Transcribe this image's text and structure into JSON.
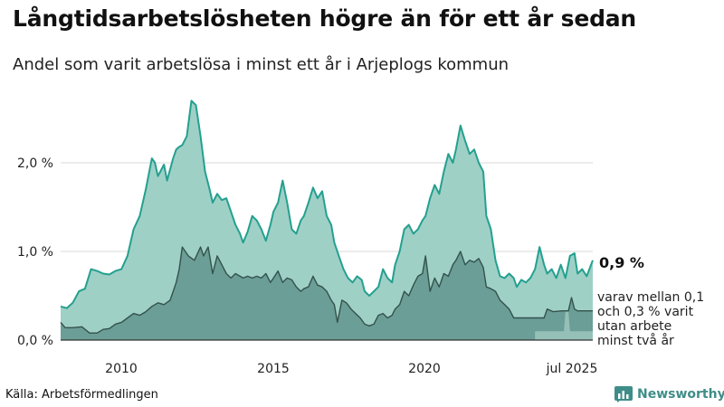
{
  "title": "Långtidsarbetslösheten högre än för ett år sedan",
  "subtitle": "Andel som varit arbetslösa i minst ett år i Arjeplogs kommun",
  "source": "Källa: Arbetsförmedlingen",
  "brand": "Newsworthy",
  "colors": {
    "total_fill": "#9fd0c6",
    "total_line": "#24a08f",
    "two_year_fill": "#6b9e96",
    "two_year_line": "#33524d",
    "band_fill": "#b8dcd5",
    "grid": "#d9d9d9",
    "brand": "#3f8d88"
  },
  "chart_data": {
    "type": "area",
    "x_ticks": [
      "2010",
      "2015",
      "2020",
      "jul 2025"
    ],
    "y_ticks": [
      "0,0 %",
      "1,0 %",
      "2,0 %"
    ],
    "ylim": [
      0,
      2.75
    ],
    "end_label": "0,9 %",
    "annotation": [
      "varav mellan 0,1",
      "och 0,3 % varit",
      "utan arbete",
      "minst två år"
    ],
    "series": [
      {
        "label": "total",
        "points": [
          [
            2008.0,
            0.38
          ],
          [
            2008.2,
            0.36
          ],
          [
            2008.4,
            0.42
          ],
          [
            2008.6,
            0.55
          ],
          [
            2008.8,
            0.58
          ],
          [
            2009.0,
            0.8
          ],
          [
            2009.2,
            0.78
          ],
          [
            2009.4,
            0.75
          ],
          [
            2009.6,
            0.74
          ],
          [
            2009.8,
            0.78
          ],
          [
            2010.0,
            0.8
          ],
          [
            2010.2,
            0.95
          ],
          [
            2010.4,
            1.25
          ],
          [
            2010.6,
            1.4
          ],
          [
            2010.8,
            1.7
          ],
          [
            2011.0,
            2.05
          ],
          [
            2011.1,
            2.0
          ],
          [
            2011.2,
            1.85
          ],
          [
            2011.4,
            1.98
          ],
          [
            2011.5,
            1.8
          ],
          [
            2011.7,
            2.05
          ],
          [
            2011.8,
            2.15
          ],
          [
            2011.9,
            2.18
          ],
          [
            2012.0,
            2.2
          ],
          [
            2012.15,
            2.3
          ],
          [
            2012.3,
            2.7
          ],
          [
            2012.45,
            2.65
          ],
          [
            2012.6,
            2.3
          ],
          [
            2012.75,
            1.9
          ],
          [
            2012.9,
            1.7
          ],
          [
            2013.0,
            1.55
          ],
          [
            2013.15,
            1.65
          ],
          [
            2013.3,
            1.58
          ],
          [
            2013.45,
            1.6
          ],
          [
            2013.6,
            1.45
          ],
          [
            2013.75,
            1.3
          ],
          [
            2013.9,
            1.2
          ],
          [
            2014.0,
            1.1
          ],
          [
            2014.15,
            1.22
          ],
          [
            2014.3,
            1.4
          ],
          [
            2014.45,
            1.35
          ],
          [
            2014.6,
            1.25
          ],
          [
            2014.75,
            1.12
          ],
          [
            2014.9,
            1.3
          ],
          [
            2015.0,
            1.45
          ],
          [
            2015.15,
            1.55
          ],
          [
            2015.3,
            1.8
          ],
          [
            2015.45,
            1.55
          ],
          [
            2015.6,
            1.25
          ],
          [
            2015.75,
            1.2
          ],
          [
            2015.9,
            1.35
          ],
          [
            2016.0,
            1.4
          ],
          [
            2016.15,
            1.55
          ],
          [
            2016.3,
            1.72
          ],
          [
            2016.45,
            1.6
          ],
          [
            2016.6,
            1.68
          ],
          [
            2016.75,
            1.4
          ],
          [
            2016.9,
            1.3
          ],
          [
            2017.0,
            1.1
          ],
          [
            2017.15,
            0.95
          ],
          [
            2017.3,
            0.8
          ],
          [
            2017.45,
            0.7
          ],
          [
            2017.6,
            0.65
          ],
          [
            2017.75,
            0.72
          ],
          [
            2017.9,
            0.68
          ],
          [
            2018.0,
            0.55
          ],
          [
            2018.15,
            0.5
          ],
          [
            2018.3,
            0.55
          ],
          [
            2018.45,
            0.6
          ],
          [
            2018.6,
            0.8
          ],
          [
            2018.75,
            0.7
          ],
          [
            2018.9,
            0.65
          ],
          [
            2019.0,
            0.85
          ],
          [
            2019.15,
            1.0
          ],
          [
            2019.3,
            1.25
          ],
          [
            2019.45,
            1.3
          ],
          [
            2019.6,
            1.2
          ],
          [
            2019.75,
            1.25
          ],
          [
            2019.9,
            1.35
          ],
          [
            2020.0,
            1.4
          ],
          [
            2020.15,
            1.6
          ],
          [
            2020.3,
            1.75
          ],
          [
            2020.45,
            1.65
          ],
          [
            2020.6,
            1.9
          ],
          [
            2020.75,
            2.1
          ],
          [
            2020.9,
            2.0
          ],
          [
            2021.0,
            2.15
          ],
          [
            2021.15,
            2.42
          ],
          [
            2021.3,
            2.25
          ],
          [
            2021.45,
            2.1
          ],
          [
            2021.6,
            2.15
          ],
          [
            2021.75,
            2.0
          ],
          [
            2021.9,
            1.9
          ],
          [
            2022.0,
            1.4
          ],
          [
            2022.15,
            1.25
          ],
          [
            2022.3,
            0.9
          ],
          [
            2022.45,
            0.72
          ],
          [
            2022.6,
            0.7
          ],
          [
            2022.75,
            0.75
          ],
          [
            2022.9,
            0.7
          ],
          [
            2023.0,
            0.6
          ],
          [
            2023.15,
            0.68
          ],
          [
            2023.3,
            0.65
          ],
          [
            2023.45,
            0.7
          ],
          [
            2023.6,
            0.8
          ],
          [
            2023.75,
            1.05
          ],
          [
            2023.9,
            0.85
          ],
          [
            2024.0,
            0.75
          ],
          [
            2024.15,
            0.8
          ],
          [
            2024.3,
            0.7
          ],
          [
            2024.45,
            0.85
          ],
          [
            2024.6,
            0.7
          ],
          [
            2024.75,
            0.95
          ],
          [
            2024.9,
            0.98
          ],
          [
            2025.0,
            0.75
          ],
          [
            2025.15,
            0.8
          ],
          [
            2025.3,
            0.72
          ],
          [
            2025.5,
            0.9
          ]
        ]
      },
      {
        "label": "two_years",
        "points": [
          [
            2008.0,
            0.2
          ],
          [
            2008.15,
            0.14
          ],
          [
            2008.4,
            0.14
          ],
          [
            2008.7,
            0.15
          ],
          [
            2008.95,
            0.08
          ],
          [
            2009.2,
            0.08
          ],
          [
            2009.4,
            0.12
          ],
          [
            2009.6,
            0.13
          ],
          [
            2009.8,
            0.18
          ],
          [
            2010.0,
            0.2
          ],
          [
            2010.2,
            0.25
          ],
          [
            2010.4,
            0.3
          ],
          [
            2010.6,
            0.28
          ],
          [
            2010.8,
            0.32
          ],
          [
            2011.0,
            0.38
          ],
          [
            2011.2,
            0.42
          ],
          [
            2011.4,
            0.4
          ],
          [
            2011.6,
            0.45
          ],
          [
            2011.8,
            0.65
          ],
          [
            2011.9,
            0.8
          ],
          [
            2012.0,
            1.05
          ],
          [
            2012.2,
            0.95
          ],
          [
            2012.4,
            0.9
          ],
          [
            2012.6,
            1.05
          ],
          [
            2012.7,
            0.95
          ],
          [
            2012.85,
            1.05
          ],
          [
            2013.0,
            0.75
          ],
          [
            2013.15,
            0.95
          ],
          [
            2013.3,
            0.85
          ],
          [
            2013.45,
            0.75
          ],
          [
            2013.6,
            0.7
          ],
          [
            2013.75,
            0.75
          ],
          [
            2013.9,
            0.72
          ],
          [
            2014.0,
            0.7
          ],
          [
            2014.15,
            0.72
          ],
          [
            2014.3,
            0.7
          ],
          [
            2014.45,
            0.72
          ],
          [
            2014.6,
            0.7
          ],
          [
            2014.75,
            0.75
          ],
          [
            2014.9,
            0.65
          ],
          [
            2015.0,
            0.7
          ],
          [
            2015.15,
            0.78
          ],
          [
            2015.3,
            0.65
          ],
          [
            2015.45,
            0.7
          ],
          [
            2015.6,
            0.68
          ],
          [
            2015.75,
            0.6
          ],
          [
            2015.9,
            0.55
          ],
          [
            2016.0,
            0.58
          ],
          [
            2016.15,
            0.6
          ],
          [
            2016.3,
            0.72
          ],
          [
            2016.45,
            0.62
          ],
          [
            2016.6,
            0.6
          ],
          [
            2016.75,
            0.55
          ],
          [
            2016.9,
            0.45
          ],
          [
            2017.0,
            0.4
          ],
          [
            2017.1,
            0.2
          ],
          [
            2017.25,
            0.45
          ],
          [
            2017.4,
            0.42
          ],
          [
            2017.55,
            0.35
          ],
          [
            2017.7,
            0.3
          ],
          [
            2017.85,
            0.25
          ],
          [
            2018.0,
            0.18
          ],
          [
            2018.15,
            0.16
          ],
          [
            2018.3,
            0.18
          ],
          [
            2018.45,
            0.28
          ],
          [
            2018.6,
            0.3
          ],
          [
            2018.75,
            0.25
          ],
          [
            2018.9,
            0.28
          ],
          [
            2019.0,
            0.35
          ],
          [
            2019.15,
            0.4
          ],
          [
            2019.3,
            0.55
          ],
          [
            2019.45,
            0.5
          ],
          [
            2019.6,
            0.62
          ],
          [
            2019.75,
            0.72
          ],
          [
            2019.9,
            0.75
          ],
          [
            2020.0,
            0.95
          ],
          [
            2020.15,
            0.55
          ],
          [
            2020.3,
            0.7
          ],
          [
            2020.45,
            0.6
          ],
          [
            2020.6,
            0.75
          ],
          [
            2020.75,
            0.72
          ],
          [
            2020.9,
            0.85
          ],
          [
            2021.0,
            0.9
          ],
          [
            2021.15,
            1.0
          ],
          [
            2021.3,
            0.85
          ],
          [
            2021.45,
            0.9
          ],
          [
            2021.6,
            0.88
          ],
          [
            2021.75,
            0.92
          ],
          [
            2021.9,
            0.82
          ],
          [
            2022.0,
            0.6
          ],
          [
            2022.15,
            0.58
          ],
          [
            2022.3,
            0.55
          ],
          [
            2022.45,
            0.45
          ],
          [
            2022.6,
            0.4
          ],
          [
            2022.75,
            0.35
          ],
          [
            2022.9,
            0.25
          ],
          [
            2023.0,
            0.25
          ],
          [
            2023.5,
            0.25
          ],
          [
            2023.9,
            0.25
          ],
          [
            2024.0,
            0.35
          ],
          [
            2024.2,
            0.32
          ],
          [
            2024.5,
            0.33
          ],
          [
            2024.7,
            0.33
          ],
          [
            2024.8,
            0.48
          ],
          [
            2024.9,
            0.35
          ],
          [
            2025.0,
            0.33
          ],
          [
            2025.5,
            0.33
          ]
        ]
      },
      {
        "label": "band_low",
        "points": [
          [
            2023.6,
            0.1
          ],
          [
            2024.55,
            0.1
          ],
          [
            2024.6,
            0.32
          ],
          [
            2024.7,
            0.32
          ],
          [
            2024.75,
            0.1
          ],
          [
            2025.5,
            0.1
          ]
        ]
      }
    ]
  }
}
